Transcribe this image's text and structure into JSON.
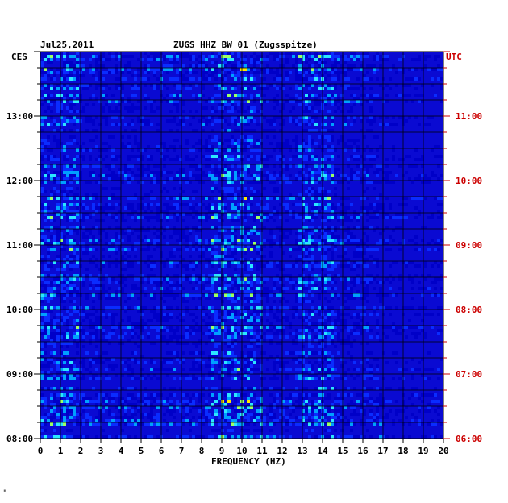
{
  "header": {
    "date": "Jul25,2011",
    "station": "ZUGS HHZ BW 01 (Zugsspitze)",
    "left_zone": "CES",
    "right_zone": "UTC"
  },
  "footer": {
    "mark": "\""
  },
  "chart_data": {
    "type": "heatmap",
    "title": "ZUGS HHZ BW 01 (Zugsspitze)",
    "xlabel": "FREQUENCY (HZ)",
    "ylabel_left": "CES",
    "ylabel_right": "UTC",
    "xlim": [
      0,
      20
    ],
    "x_ticks": [
      "0",
      "1",
      "2",
      "3",
      "4",
      "5",
      "6",
      "7",
      "8",
      "9",
      "10",
      "11",
      "12",
      "13",
      "14",
      "15",
      "16",
      "17",
      "18",
      "19",
      "20"
    ],
    "time_range_ces": [
      "08:00",
      "14:00"
    ],
    "y_ticks_left": [
      {
        "hour": 8,
        "label": "08:00"
      },
      {
        "hour": 9,
        "label": "09:00"
      },
      {
        "hour": 10,
        "label": "10:00"
      },
      {
        "hour": 11,
        "label": "11:00"
      },
      {
        "hour": 12,
        "label": "12:00"
      },
      {
        "hour": 13,
        "label": "13:00"
      }
    ],
    "y_ticks_right": [
      {
        "hour": 8,
        "label": "06:00"
      },
      {
        "hour": 9,
        "label": "07:00"
      },
      {
        "hour": 10,
        "label": "08:00"
      },
      {
        "hour": 11,
        "label": "09:00"
      },
      {
        "hour": 12,
        "label": "10:00"
      },
      {
        "hour": 13,
        "label": "11:00"
      }
    ],
    "colors": {
      "background": "#0a0ad2",
      "grid": "#000000",
      "left_text": "#000000",
      "right_text": "#cc0000"
    },
    "colormap": [
      "#00007a",
      "#0000c8",
      "#0a2cff",
      "#00a0ff",
      "#2ce6ff",
      "#9cff66",
      "#ffe600",
      "#ff3a00"
    ]
  }
}
